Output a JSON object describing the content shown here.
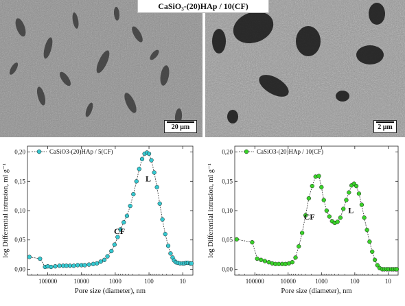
{
  "header": {
    "title": "CaSiO₃-(20)HAp / 10(CF)"
  },
  "images": [
    {
      "scale_label": "20 μm"
    },
    {
      "scale_label": "2 μm"
    }
  ],
  "chart_data": [
    {
      "type": "scatter",
      "series": [
        {
          "name": "CaSiO3-(20)HAp / 5(CF)",
          "color": "#35c8d0",
          "marker": "circle"
        }
      ],
      "xlabel": "Pore size (diameter), nm",
      "ylabel": "log Differential intrusion, ml g⁻¹",
      "x_scale": "log",
      "x_reversed": true,
      "xlim": [
        400000,
        5
      ],
      "ylim": [
        -0.01,
        0.21
      ],
      "x_ticks": [
        100000,
        10000,
        1000,
        100,
        10
      ],
      "x_tick_labels": [
        "100000",
        "10000",
        "1000",
        "100",
        "10"
      ],
      "y_ticks": [
        0.0,
        0.05,
        0.1,
        0.15,
        0.2
      ],
      "y_tick_labels": [
        "0,00",
        "0,05",
        "0,10",
        "0,15",
        "0,20"
      ],
      "annotations": [
        {
          "text": "CF",
          "x": 750,
          "y": 0.06
        },
        {
          "text": "L",
          "x": 105,
          "y": 0.15
        }
      ],
      "x": [
        350000,
        170000,
        120000,
        100000,
        80000,
        60000,
        45000,
        35000,
        28000,
        22000,
        17000,
        13000,
        10000,
        8000,
        6000,
        4500,
        3500,
        2700,
        2100,
        1700,
        1300,
        1050,
        850,
        700,
        560,
        450,
        360,
        290,
        235,
        195,
        160,
        135,
        115,
        100,
        85,
        70,
        58,
        48,
        40,
        33,
        27,
        23,
        20,
        18,
        16,
        14,
        12,
        10,
        9,
        8,
        7,
        6,
        5.5
      ],
      "y": [
        0.021,
        0.018,
        0.004,
        0.005,
        0.004,
        0.005,
        0.006,
        0.006,
        0.006,
        0.006,
        0.006,
        0.007,
        0.007,
        0.007,
        0.008,
        0.009,
        0.01,
        0.013,
        0.016,
        0.022,
        0.031,
        0.042,
        0.055,
        0.068,
        0.08,
        0.091,
        0.108,
        0.128,
        0.15,
        0.171,
        0.188,
        0.197,
        0.199,
        0.197,
        0.186,
        0.165,
        0.14,
        0.112,
        0.085,
        0.06,
        0.04,
        0.027,
        0.02,
        0.015,
        0.012,
        0.011,
        0.01,
        0.01,
        0.01,
        0.011,
        0.011,
        0.01,
        0.01
      ]
    },
    {
      "type": "scatter",
      "series": [
        {
          "name": "CaSiO3-(20)HAp / 10(CF)",
          "color": "#39d229",
          "marker": "circle"
        }
      ],
      "xlabel": "Pore size (diameter), nm",
      "ylabel": "log Differential intrusion, ml g⁻¹",
      "x_scale": "log",
      "x_reversed": true,
      "xlim": [
        400000,
        5
      ],
      "ylim": [
        -0.01,
        0.21
      ],
      "x_ticks": [
        100000,
        10000,
        1000,
        100,
        10
      ],
      "x_tick_labels": [
        "100000",
        "10000",
        "1000",
        "100",
        "10"
      ],
      "y_ticks": [
        0.0,
        0.05,
        0.1,
        0.15,
        0.2
      ],
      "y_tick_labels": [
        "0,00",
        "0,05",
        "0,10",
        "0,15",
        "0,20"
      ],
      "annotations": [
        {
          "text": "CF",
          "x": 2300,
          "y": 0.085
        },
        {
          "text": "L",
          "x": 130,
          "y": 0.096
        }
      ],
      "x": [
        350000,
        120000,
        85000,
        65000,
        50000,
        38000,
        30000,
        24000,
        19000,
        15000,
        12000,
        9500,
        7500,
        6000,
        4800,
        3800,
        3000,
        2400,
        1900,
        1500,
        1200,
        1000,
        850,
        700,
        580,
        480,
        400,
        330,
        270,
        220,
        180,
        150,
        125,
        105,
        90,
        75,
        62,
        52,
        43,
        36,
        30,
        25,
        21,
        18,
        15,
        13,
        11,
        9.5,
        8,
        7,
        6,
        5.5
      ],
      "y": [
        0.051,
        0.046,
        0.018,
        0.016,
        0.014,
        0.012,
        0.01,
        0.009,
        0.009,
        0.009,
        0.009,
        0.01,
        0.012,
        0.02,
        0.039,
        0.062,
        0.092,
        0.121,
        0.142,
        0.158,
        0.159,
        0.14,
        0.118,
        0.1,
        0.09,
        0.082,
        0.079,
        0.081,
        0.088,
        0.103,
        0.118,
        0.131,
        0.143,
        0.146,
        0.142,
        0.129,
        0.11,
        0.088,
        0.067,
        0.047,
        0.03,
        0.016,
        0.007,
        0.002,
        0.0,
        0.0,
        0.0,
        0.0,
        0.0,
        0.0,
        0.0,
        0.0
      ]
    }
  ]
}
